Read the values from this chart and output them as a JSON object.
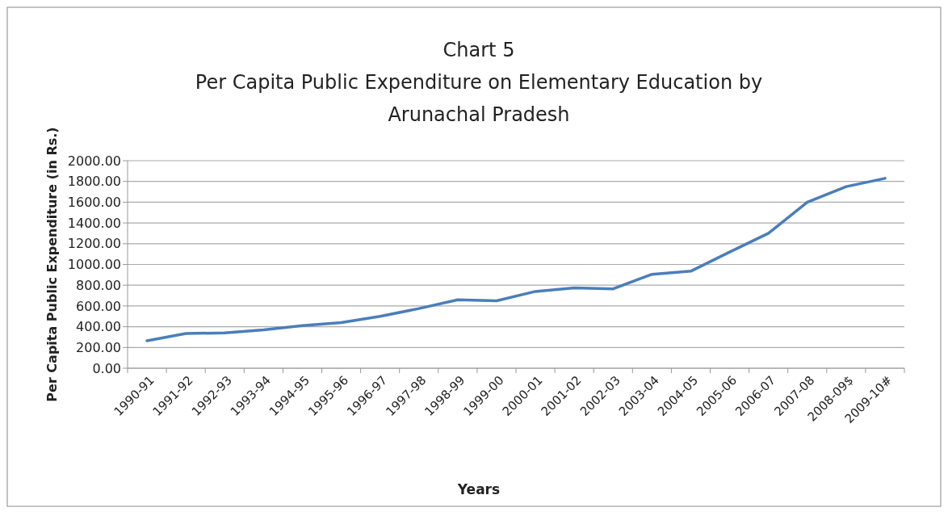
{
  "chart_data": {
    "type": "line",
    "title": "Chart 5\nPer Capita Public Expenditure on Elementary Education by\nArunachal Pradesh",
    "xlabel": "Years",
    "ylabel": "Per Capita Public Expenditure (in Rs.)",
    "categories": [
      "1990-91",
      "1991-92",
      "1992-93",
      "1993-94",
      "1994-95",
      "1995-96",
      "1996-97",
      "1997-98",
      "1998-99",
      "1999-00",
      "2000-01",
      "2001-02",
      "2002-03",
      "2003-04",
      "2004-05",
      "2005-06",
      "2006-07",
      "2007-08",
      "2008-09$",
      "2009-10#"
    ],
    "series": [
      {
        "color": "#4a7ebb",
        "values": [
          265,
          335,
          340,
          370,
          410,
          440,
          500,
          575,
          660,
          650,
          740,
          775,
          765,
          905,
          935,
          1120,
          1300,
          1600,
          1750,
          1830
        ]
      }
    ],
    "ylim": [
      0,
      2000
    ],
    "yticks": [
      {
        "value": 0,
        "label": "0.00"
      },
      {
        "value": 200,
        "label": "200.00"
      },
      {
        "value": 400,
        "label": "400.00"
      },
      {
        "value": 600,
        "label": "600.00"
      },
      {
        "value": 800,
        "label": "800.00"
      },
      {
        "value": 1000,
        "label": "1000.00"
      },
      {
        "value": 1200,
        "label": "1200.00"
      },
      {
        "value": 1400,
        "label": "1400.00"
      },
      {
        "value": 1600,
        "label": "1600.00"
      },
      {
        "value": 1800,
        "label": "1800.00"
      },
      {
        "value": 2000,
        "label": "2000.00"
      }
    ],
    "grid": "y",
    "marker": "none",
    "line_style": "solid"
  }
}
